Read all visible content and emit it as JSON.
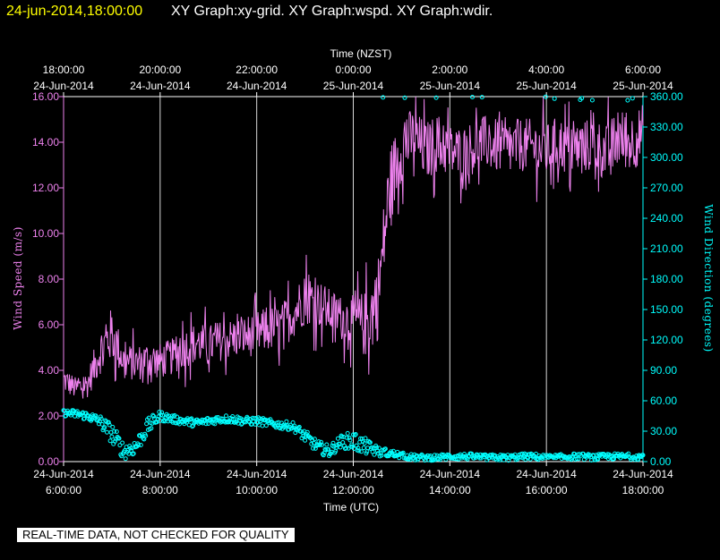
{
  "header": {
    "timestamp": "24-jun-2014,18:00:00",
    "title": "XY Graph:xy-grid.  XY Graph:wspd.  XY Graph:wdir."
  },
  "notice": "REAL-TIME DATA, NOT CHECKED FOR QUALITY",
  "colors": {
    "timestamp": "#ffff00",
    "title": "#ffffff",
    "axis": "#ffffff",
    "grid": "#ffffff",
    "wspd": "#ee82ee",
    "wdir": "#00ffff"
  },
  "chart_data": {
    "type": "line",
    "top_axis": {
      "label": "Time (NZST)",
      "ticks": [
        {
          "time": "18:00:00",
          "date": "24-Jun-2014"
        },
        {
          "time": "20:00:00",
          "date": "24-Jun-2014"
        },
        {
          "time": "22:00:00",
          "date": "24-Jun-2014"
        },
        {
          "time": "0:00:00",
          "date": "25-Jun-2014"
        },
        {
          "time": "2:00:00",
          "date": "25-Jun-2014"
        },
        {
          "time": "4:00:00",
          "date": "25-Jun-2014"
        },
        {
          "time": "6:00:00",
          "date": "25-Jun-2014"
        }
      ]
    },
    "bottom_axis": {
      "label": "Time (UTC)",
      "ticks": [
        {
          "date": "24-Jun-2014",
          "time": "6:00:00"
        },
        {
          "date": "24-Jun-2014",
          "time": "8:00:00"
        },
        {
          "date": "24-Jun-2014",
          "time": "10:00:00"
        },
        {
          "date": "24-Jun-2014",
          "time": "12:00:00"
        },
        {
          "date": "24-Jun-2014",
          "time": "14:00:00"
        },
        {
          "date": "24-Jun-2014",
          "time": "16:00:00"
        },
        {
          "date": "24-Jun-2014",
          "time": "18:00:00"
        }
      ]
    },
    "xlim_utc_hours": [
      6,
      18
    ],
    "grid": true,
    "left_axis": {
      "label": "Wind Speed (m/s)",
      "ylim": [
        0,
        16
      ],
      "ticks": [
        "0.00",
        "2.00",
        "4.00",
        "6.00",
        "8.00",
        "10.00",
        "12.00",
        "14.00",
        "16.00"
      ]
    },
    "right_axis": {
      "label": "Wind Direction (degrees)",
      "ylim": [
        0,
        360
      ],
      "ticks": [
        "0.00",
        "30.00",
        "60.00",
        "90.00",
        "120.00",
        "150.00",
        "180.00",
        "210.00",
        "240.00",
        "270.00",
        "300.00",
        "330.00",
        "360.00"
      ]
    },
    "series": [
      {
        "id": "wspd",
        "style": "line",
        "axis": "left",
        "x_utc_hours": [
          6.0,
          6.25,
          6.5,
          6.75,
          7.0,
          7.25,
          7.5,
          7.75,
          8.0,
          8.25,
          8.5,
          8.75,
          9.0,
          9.25,
          9.5,
          9.75,
          10.0,
          10.25,
          10.5,
          10.75,
          11.0,
          11.25,
          11.5,
          11.75,
          12.0,
          12.25,
          12.5,
          12.75,
          13.0,
          13.25,
          13.5,
          13.75,
          14.0,
          14.25,
          14.5,
          14.75,
          15.0,
          15.25,
          15.5,
          15.75,
          16.0,
          16.25,
          16.5,
          16.75,
          17.0,
          17.25,
          17.5,
          17.75,
          18.0
        ],
        "values": [
          3.6,
          3.2,
          3.4,
          4.8,
          5.6,
          4.4,
          4.3,
          4.5,
          4.4,
          4.6,
          5.0,
          5.2,
          5.1,
          5.3,
          5.4,
          5.5,
          5.6,
          5.8,
          5.9,
          6.5,
          7.2,
          7.0,
          6.6,
          6.3,
          6.2,
          6.0,
          7.0,
          12.0,
          13.8,
          14.2,
          13.6,
          14.0,
          13.6,
          13.5,
          13.8,
          14.0,
          13.8,
          13.7,
          13.9,
          13.8,
          13.6,
          14.0,
          13.6,
          13.8,
          13.9,
          13.5,
          14.2,
          14.0,
          14.4
        ],
        "spread": [
          0.6,
          0.5,
          0.6,
          1.0,
          1.2,
          0.8,
          0.8,
          0.8,
          0.8,
          0.8,
          0.9,
          0.9,
          0.9,
          0.9,
          0.9,
          0.9,
          1.0,
          1.0,
          1.0,
          1.1,
          1.2,
          1.1,
          1.0,
          1.0,
          1.1,
          1.5,
          1.8,
          1.8,
          1.5,
          1.3,
          1.3,
          1.3,
          1.2,
          1.2,
          1.2,
          1.2,
          1.2,
          1.2,
          1.2,
          1.2,
          1.2,
          1.2,
          1.2,
          1.2,
          1.2,
          1.3,
          1.3,
          1.3,
          1.3
        ]
      },
      {
        "id": "wdir",
        "style": "scatter",
        "axis": "right",
        "x_utc_hours": [
          6.0,
          6.25,
          6.5,
          6.75,
          7.0,
          7.25,
          7.5,
          7.75,
          8.0,
          8.25,
          8.5,
          8.75,
          9.0,
          9.25,
          9.5,
          9.75,
          10.0,
          10.25,
          10.5,
          10.75,
          11.0,
          11.25,
          11.5,
          11.75,
          12.0,
          12.25,
          12.5,
          12.75,
          13.0,
          13.25,
          13.5,
          13.75,
          14.0,
          14.25,
          14.5,
          14.75,
          15.0,
          15.25,
          15.5,
          15.75,
          16.0,
          16.25,
          16.5,
          16.75,
          17.0,
          17.25,
          17.5,
          17.75,
          18.0
        ],
        "values": [
          48,
          47,
          45,
          40,
          28,
          10,
          15,
          35,
          45,
          42,
          40,
          38,
          40,
          42,
          42,
          40,
          40,
          38,
          36,
          35,
          25,
          15,
          10,
          20,
          20,
          15,
          10,
          8,
          6,
          4,
          4,
          4,
          5,
          5,
          5,
          4,
          4,
          4,
          5,
          5,
          4,
          4,
          5,
          5,
          4,
          5,
          5,
          5,
          5
        ],
        "spread": [
          3,
          4,
          4,
          6,
          10,
          8,
          8,
          8,
          5,
          4,
          4,
          4,
          4,
          4,
          4,
          4,
          4,
          4,
          4,
          4,
          6,
          6,
          6,
          6,
          10,
          8,
          5,
          4,
          3,
          3,
          3,
          3,
          3,
          3,
          3,
          3,
          3,
          3,
          3,
          3,
          3,
          3,
          3,
          3,
          3,
          3,
          3,
          3,
          3
        ]
      }
    ]
  }
}
